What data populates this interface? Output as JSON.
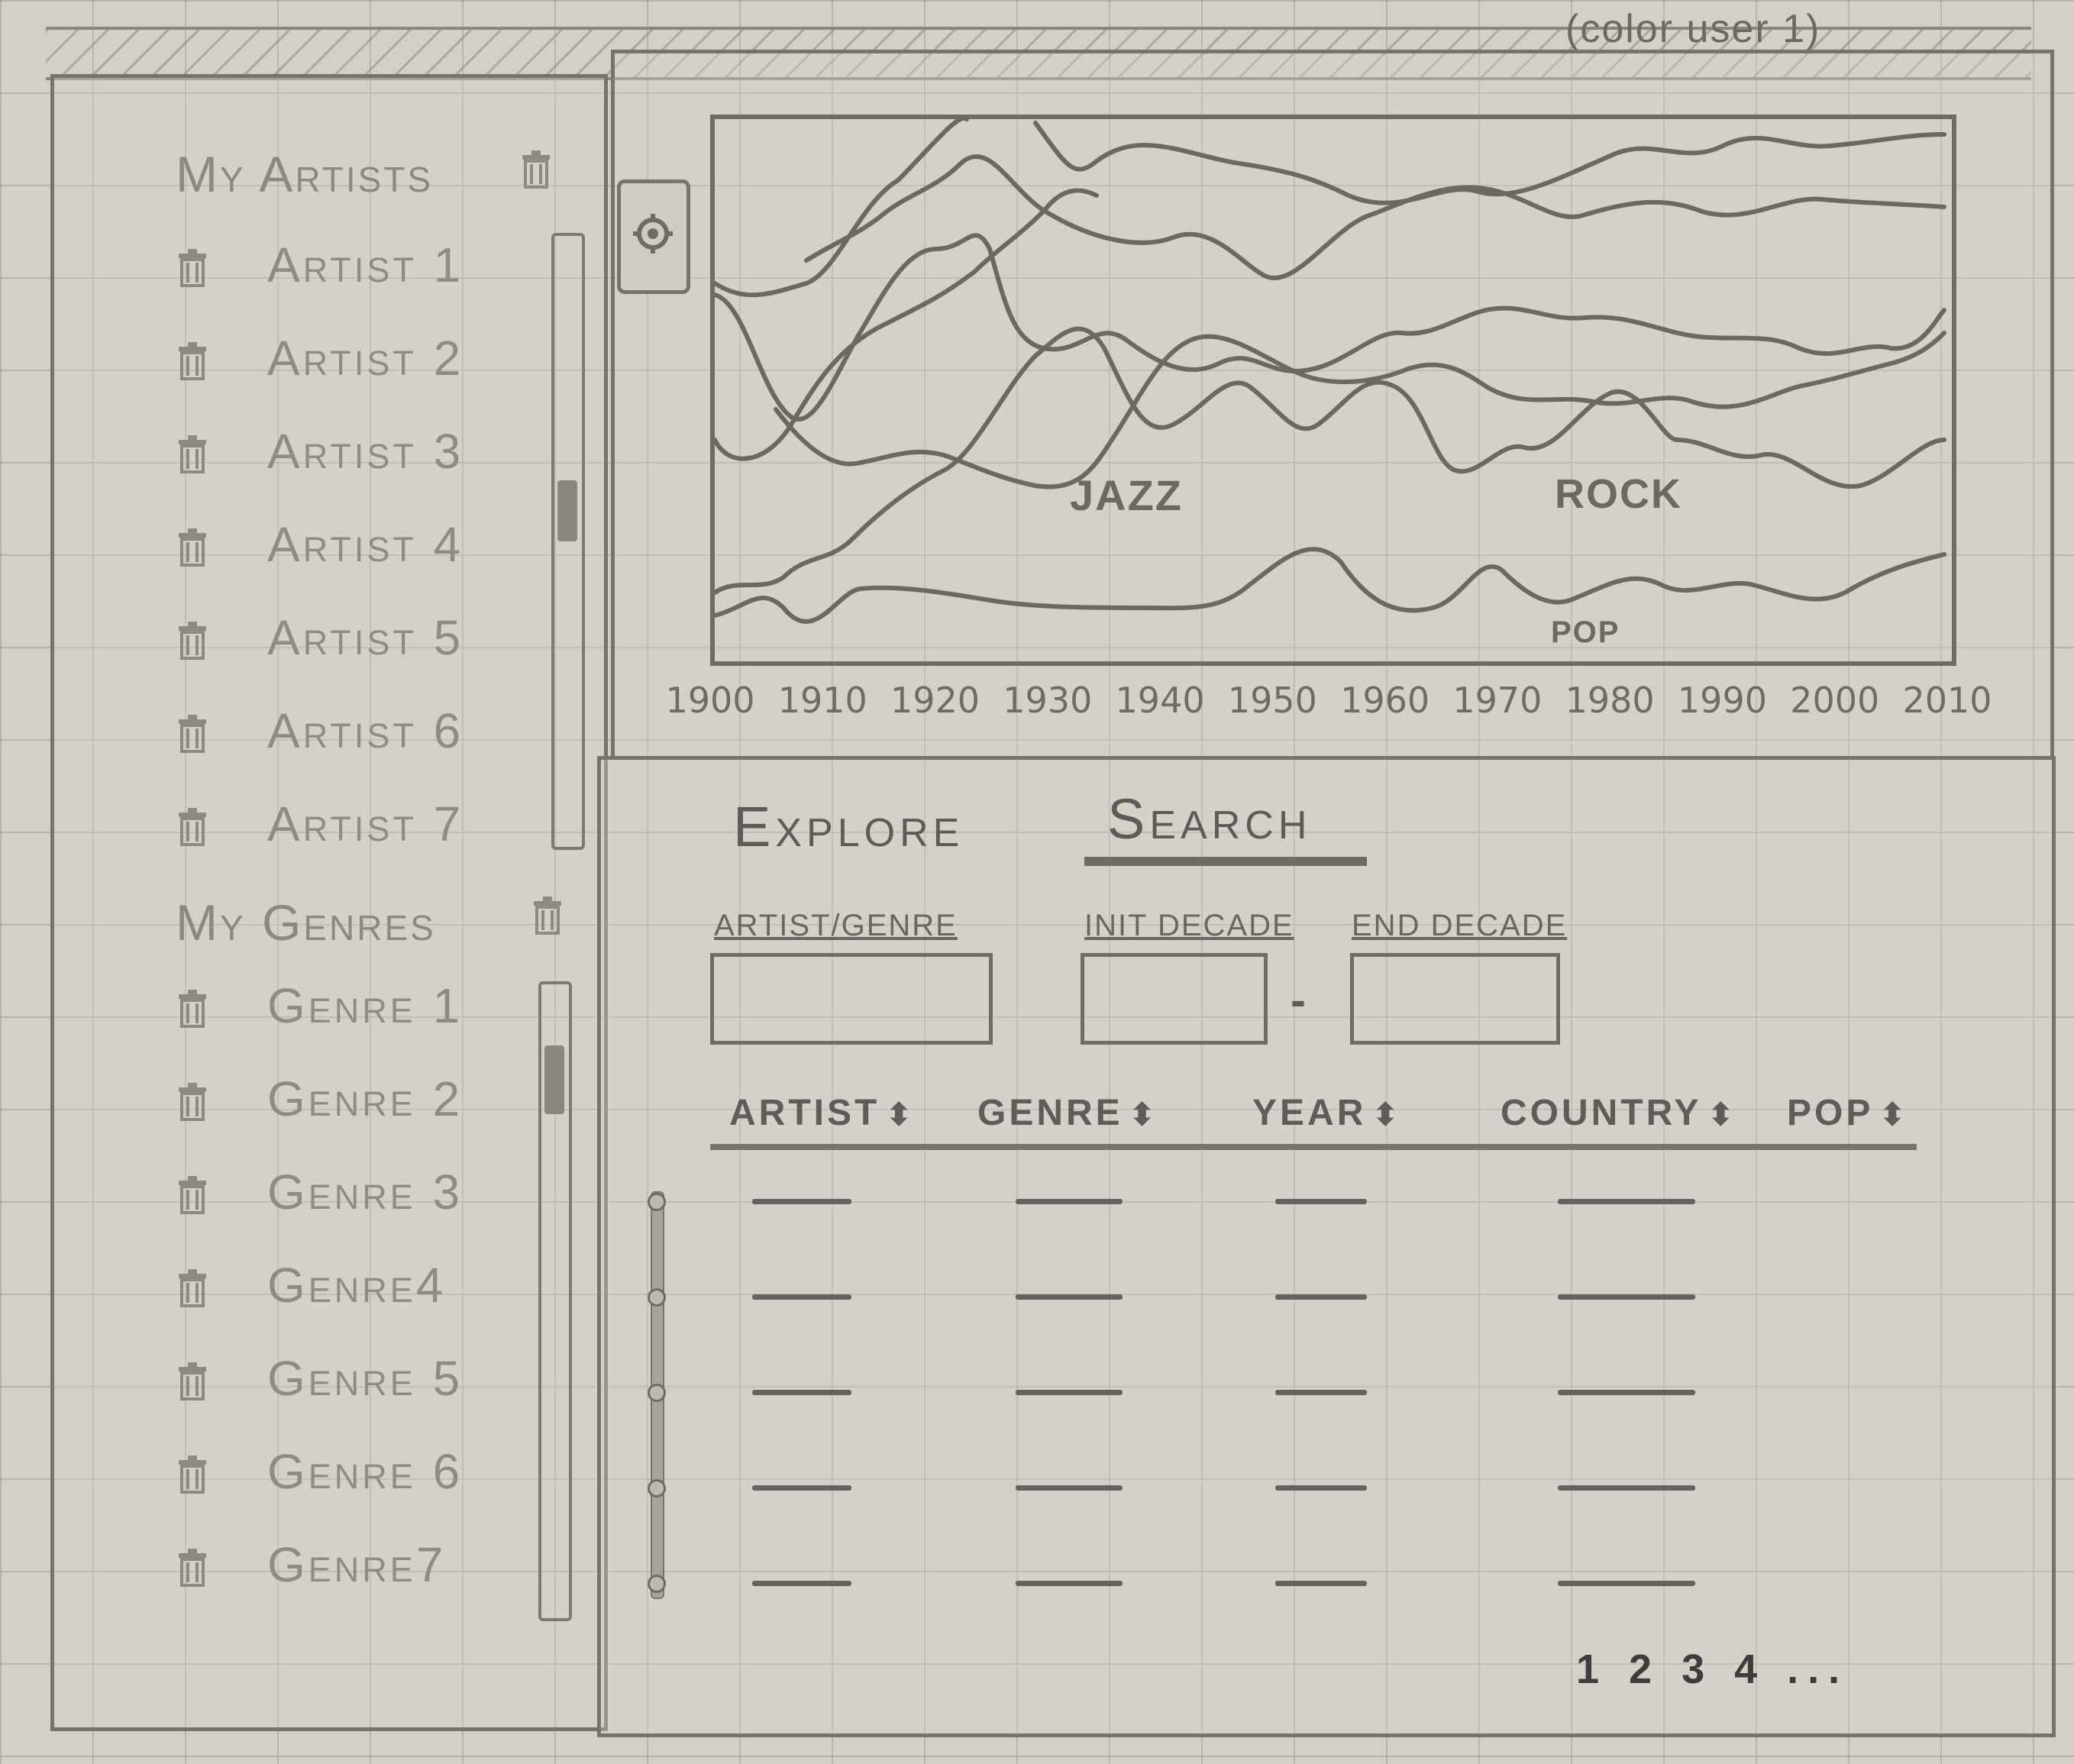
{
  "header": {
    "note": "(color user 1)"
  },
  "artists": {
    "title": "My Artists",
    "items": [
      "Artist 1",
      "Artist 2",
      "Artist 3",
      "Artist 4",
      "Artist 5",
      "Artist 6",
      "Artist 7"
    ]
  },
  "genres": {
    "title": "My Genres",
    "items": [
      "Genre 1",
      "Genre 2",
      "Genre 3",
      "Genre4",
      "Genre 5",
      "Genre 6",
      "Genre7"
    ]
  },
  "chart_data": {
    "type": "line",
    "x_ticks": [
      "1900",
      "1910",
      "1920",
      "1930",
      "1940",
      "1950",
      "1960",
      "1970",
      "1980",
      "1990",
      "2000",
      "2010"
    ],
    "annotations": [
      "JAZZ",
      "ROCK",
      "POP"
    ]
  },
  "tabs": [
    {
      "label": "Explore",
      "active": false
    },
    {
      "label": "Search",
      "active": true
    }
  ],
  "search_form": {
    "artist_genre_label": "ARTIST/GENRE",
    "init_decade_label": "INIT DECADE",
    "separator": "-",
    "end_decade_label": "END DECADE"
  },
  "results_table": {
    "columns": [
      "ARTIST",
      "GENRE",
      "YEAR",
      "COUNTRY",
      "POP"
    ],
    "sort_glyph": "⬍",
    "row_count": 5
  },
  "pagination": {
    "label": "1 2 3 4 ..."
  }
}
